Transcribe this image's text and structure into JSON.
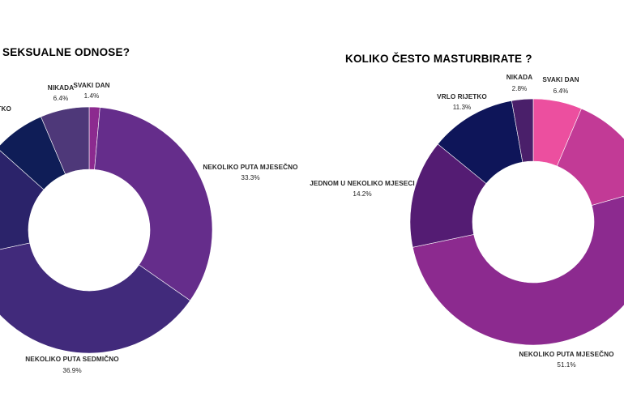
{
  "chart_data": [
    {
      "type": "pie",
      "title": "SEKSUALNE ODNOSE?",
      "slices": [
        {
          "label": "SVAKI DAN",
          "value": 1.4,
          "color": "#8c2a8f"
        },
        {
          "label": "NEKOLIKO PUTA MJESEČNO",
          "value": 33.3,
          "color": "#652d8b"
        },
        {
          "label": "NEKOLIKO PUTA SEDMIČNO",
          "value": 36.9,
          "color": "#412a7b"
        },
        {
          "label": "",
          "value": 15.0,
          "color": "#2b236a"
        },
        {
          "label": "RIJETKO",
          "value": 7.0,
          "color": "#0f1d57"
        },
        {
          "label": "NIKADA",
          "value": 6.4,
          "color": "#4e3879"
        }
      ],
      "display": [
        {
          "name": "SVAKI DAN",
          "value": "1.4%"
        },
        {
          "name": "NEKOLIKO PUTA MJESEČNO",
          "value": "33.3%"
        },
        {
          "name": "NEKOLIKO PUTA SEDMIČNO",
          "value": "36.9%"
        },
        {
          "name": "RIJETKO",
          "value": ""
        },
        {
          "name": "NIKADA",
          "value": "6.4%"
        }
      ]
    },
    {
      "type": "pie",
      "title": "KOLIKO ČESTO MASTURBIRATE ?",
      "slices": [
        {
          "label": "SVAKI DAN",
          "value": 6.4,
          "color": "#ec4f9f"
        },
        {
          "label": "",
          "value": 14.2,
          "color": "#c23a96"
        },
        {
          "label": "NEKOLIKO PUTA MJESEČNO",
          "value": 51.1,
          "color": "#8c2a8f"
        },
        {
          "label": "JEDNOM U NEKOLIKO MJESECI",
          "value": 14.2,
          "color": "#541c73"
        },
        {
          "label": "VRLO RIJETKO",
          "value": 11.3,
          "color": "#0e1559"
        },
        {
          "label": "NIKADA",
          "value": 2.8,
          "color": "#4a1f6a"
        }
      ],
      "display": [
        {
          "name": "SVAKI DAN",
          "value": "6.4%"
        },
        {
          "name": "NEKOLIKO PUTA MJESEČNO",
          "value": "51.1%"
        },
        {
          "name": "JEDNOM U NEKOLIKO MJESECI",
          "value": "14.2%"
        },
        {
          "name": "VRLO RIJETKO",
          "value": "11.3%"
        },
        {
          "name": "NIKADA",
          "value": "2.8%"
        }
      ]
    }
  ]
}
